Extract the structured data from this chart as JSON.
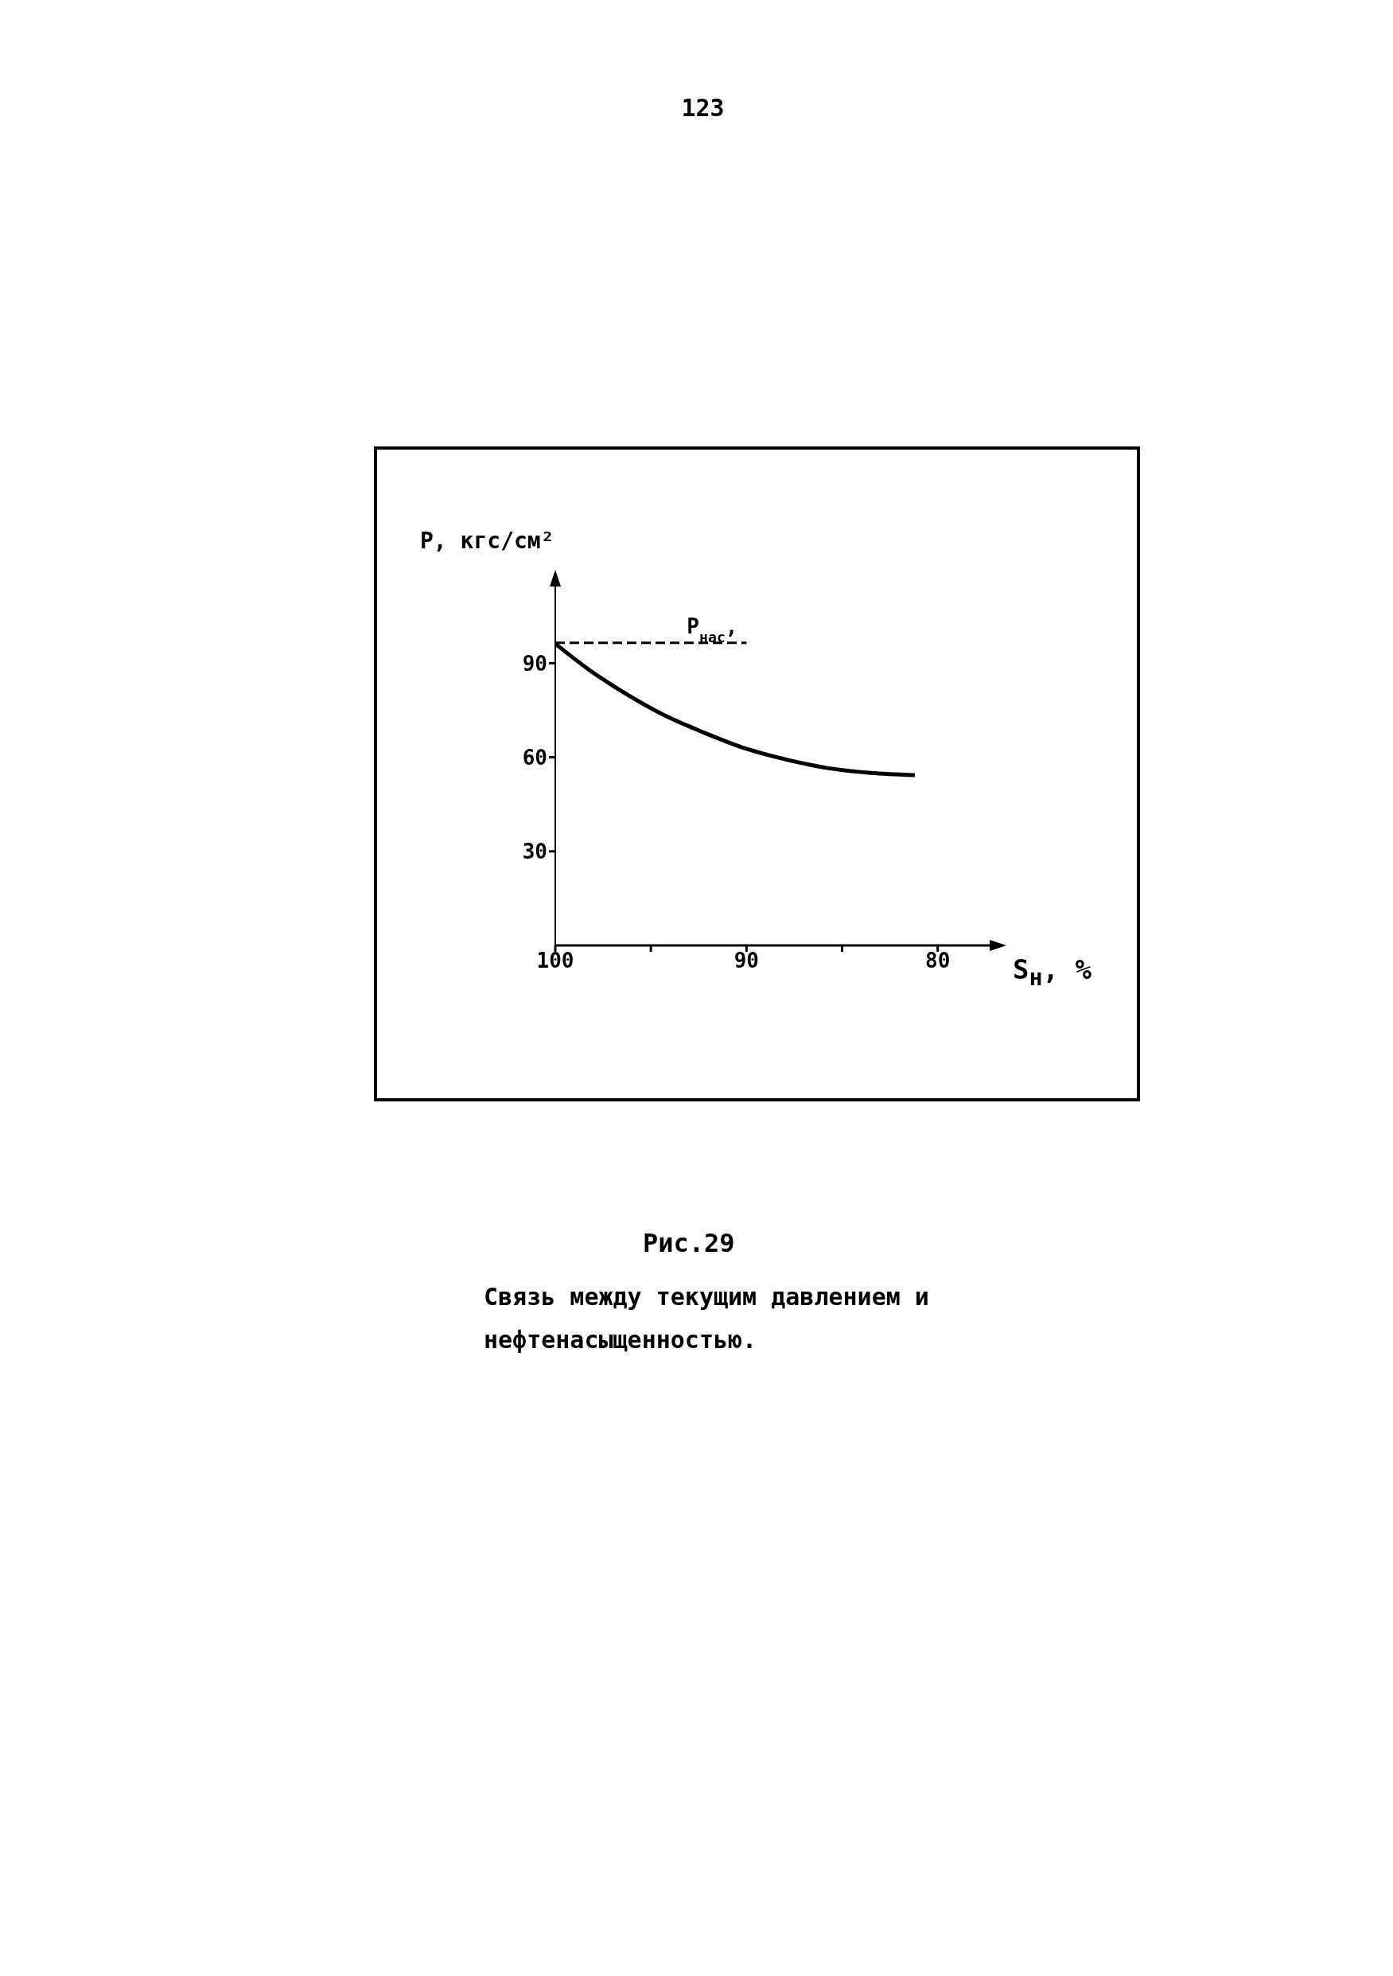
{
  "chart_data": {
    "type": "line",
    "xlabel": "S$_{н}$, %",
    "ylabel": "P, кгс/см²",
    "annotations": [
      "123",
      "Рис.29",
      "Связь между текущим давлением и нефтенасыщенностью."
    ],
    "xlim": [
      100,
      76.7
    ],
    "xticks": [
      100,
      {
        "value": 95,
        "label": null
      },
      90,
      {
        "value": 85,
        "label": null
      },
      80
    ],
    "ylim": [
      0,
      118
    ],
    "yticks": [
      30,
      60,
      90
    ],
    "grid": false,
    "legend": false,
    "marker": "none",
    "series": [
      {
        "color": "#000000",
        "line_style": "solid",
        "x": [
          100,
          98.3,
          96.3,
          94.4,
          92.2,
          90.0,
          87.8,
          85.7,
          83.5,
          81.2
        ],
        "values": [
          96.2,
          88.2,
          80.2,
          73.7,
          67.8,
          62.7,
          59.1,
          56.5,
          55.0,
          54.3
        ]
      },
      {
        "name": "P$_{нас}$,",
        "color": "#000000",
        "line_style": "dashed",
        "x": [
          100,
          90
        ],
        "values": [
          96.5,
          96.5
        ]
      }
    ]
  }
}
